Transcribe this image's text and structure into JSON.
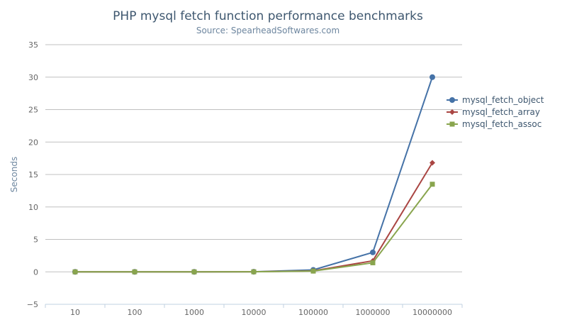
{
  "chart_data": {
    "type": "line",
    "title": "PHP mysql fetch function performance benchmarks",
    "subtitle": "Source: SpearheadSoftwares.com",
    "xlabel": "",
    "ylabel": "Seconds",
    "categories": [
      "10",
      "100",
      "1000",
      "10000",
      "100000",
      "1000000",
      "10000000"
    ],
    "ylim": [
      -5,
      35
    ],
    "yticks": [
      -5,
      0,
      5,
      10,
      15,
      20,
      25,
      30,
      35
    ],
    "ytick_labels": [
      "−5",
      "0",
      "5",
      "10",
      "15",
      "20",
      "25",
      "30",
      "35"
    ],
    "grid": true,
    "legend_position": "right",
    "series": [
      {
        "name": "mysql_fetch_object",
        "color": "#4572A7",
        "marker": "circle",
        "values": [
          0,
          0,
          0,
          0.02,
          0.3,
          3.0,
          30.0
        ]
      },
      {
        "name": "mysql_fetch_array",
        "color": "#AA4643",
        "marker": "diamond",
        "values": [
          0,
          0,
          0,
          0.01,
          0.15,
          1.7,
          16.8
        ]
      },
      {
        "name": "mysql_fetch_assoc",
        "color": "#89A54E",
        "marker": "square",
        "values": [
          0,
          0,
          0,
          0.01,
          0.12,
          1.4,
          13.5
        ]
      }
    ]
  }
}
